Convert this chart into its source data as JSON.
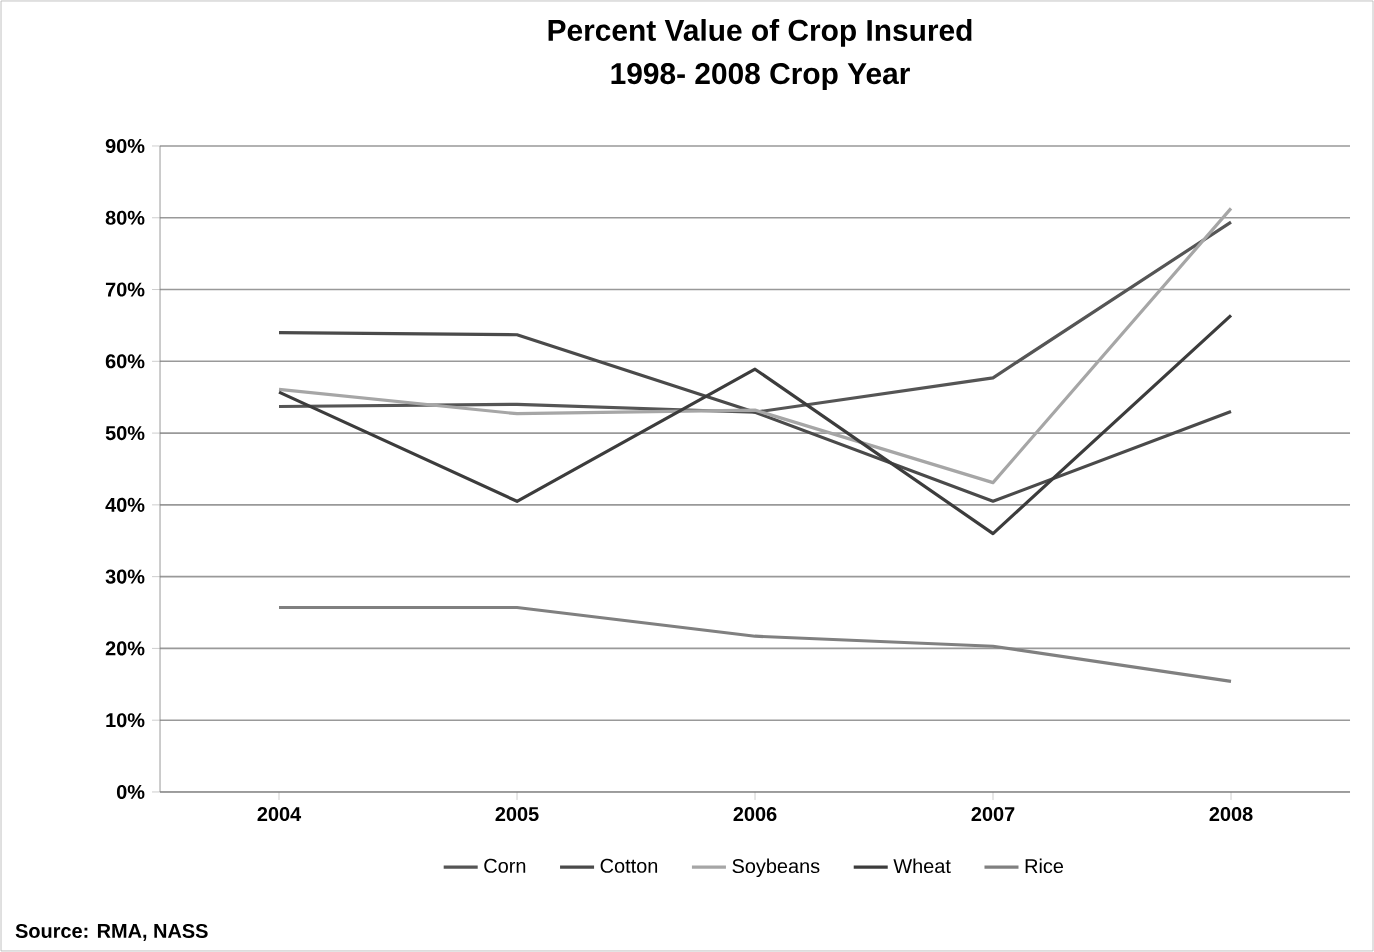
{
  "chart_data": {
    "type": "line",
    "title": "Percent Value of Crop Insured",
    "subtitle": "1998- 2008 Crop Year",
    "categories": [
      "2004",
      "2005",
      "2006",
      "2007",
      "2008"
    ],
    "series": [
      {
        "name": "Corn",
        "color": "#555555",
        "values": [
          53.7,
          54,
          52.9,
          57.7,
          79.4
        ]
      },
      {
        "name": "Cotton",
        "color": "#4a4a4a",
        "values": [
          64,
          63.7,
          52.9,
          40.5,
          53
        ]
      },
      {
        "name": "Soybeans",
        "color": "#a6a6a6",
        "values": [
          56.1,
          52.7,
          53.2,
          43.1,
          81.3
        ]
      },
      {
        "name": "Wheat",
        "color": "#3c3c3c",
        "values": [
          55.7,
          40.5,
          58.9,
          36,
          66.4
        ]
      },
      {
        "name": "Rice",
        "color": "#808080",
        "values": [
          25.7,
          25.7,
          21.7,
          20.3,
          15.4
        ]
      }
    ],
    "ylim": [
      0,
      90
    ],
    "yticks": [
      {
        "value": 0,
        "label": "0%"
      },
      {
        "value": 10,
        "label": "10%"
      },
      {
        "value": 20,
        "label": "20%"
      },
      {
        "value": 30,
        "label": "30%"
      },
      {
        "value": 40,
        "label": "40%"
      },
      {
        "value": 50,
        "label": "50%"
      },
      {
        "value": 60,
        "label": "60%"
      },
      {
        "value": 70,
        "label": "70%"
      },
      {
        "value": 80,
        "label": "80%"
      },
      {
        "value": 90,
        "label": "90%"
      }
    ],
    "grid": "y",
    "legend": "bottom",
    "marker": "none",
    "line_style": "solid",
    "annotations": [
      "Source: RMA, NASS"
    ]
  }
}
